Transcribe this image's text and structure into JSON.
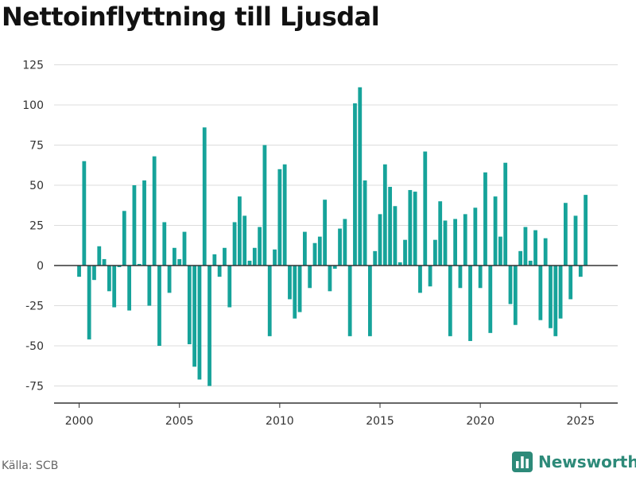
{
  "chart_data": {
    "type": "bar",
    "title": "Nettoinflyttning till Ljusdal",
    "xlabel": "",
    "ylabel": "",
    "ylim": [
      -85,
      135
    ],
    "yticks": [
      125,
      100,
      75,
      50,
      25,
      0,
      -25,
      -50,
      -75
    ],
    "xticks": [
      2000,
      2005,
      2010,
      2015,
      2020,
      2025
    ],
    "xlim": [
      1998.75,
      2026.85
    ],
    "bar_color": "#16a39a",
    "grid": true,
    "series": [
      {
        "values": [
          {
            "x": 2000.0,
            "y": -7
          },
          {
            "x": 2000.25,
            "y": 65
          },
          {
            "x": 2000.5,
            "y": -46
          },
          {
            "x": 2000.75,
            "y": -9
          },
          {
            "x": 2001.0,
            "y": 12
          },
          {
            "x": 2001.25,
            "y": 4
          },
          {
            "x": 2001.5,
            "y": -16
          },
          {
            "x": 2001.75,
            "y": -26
          },
          {
            "x": 2002.0,
            "y": -1
          },
          {
            "x": 2002.25,
            "y": 34
          },
          {
            "x": 2002.5,
            "y": -28
          },
          {
            "x": 2002.75,
            "y": 50
          },
          {
            "x": 2003.0,
            "y": 1
          },
          {
            "x": 2003.25,
            "y": 53
          },
          {
            "x": 2003.5,
            "y": -25
          },
          {
            "x": 2003.75,
            "y": 68
          },
          {
            "x": 2004.0,
            "y": -50
          },
          {
            "x": 2004.25,
            "y": 27
          },
          {
            "x": 2004.5,
            "y": -17
          },
          {
            "x": 2004.75,
            "y": 11
          },
          {
            "x": 2005.0,
            "y": 4
          },
          {
            "x": 2005.25,
            "y": 21
          },
          {
            "x": 2005.5,
            "y": -49
          },
          {
            "x": 2005.75,
            "y": -63
          },
          {
            "x": 2006.0,
            "y": -71
          },
          {
            "x": 2006.25,
            "y": 86
          },
          {
            "x": 2006.5,
            "y": -75
          },
          {
            "x": 2006.75,
            "y": 7
          },
          {
            "x": 2007.0,
            "y": -7
          },
          {
            "x": 2007.25,
            "y": 11
          },
          {
            "x": 2007.5,
            "y": -26
          },
          {
            "x": 2007.75,
            "y": 27
          },
          {
            "x": 2008.0,
            "y": 43
          },
          {
            "x": 2008.25,
            "y": 31
          },
          {
            "x": 2008.5,
            "y": 3
          },
          {
            "x": 2008.75,
            "y": 11
          },
          {
            "x": 2009.0,
            "y": 24
          },
          {
            "x": 2009.25,
            "y": 75
          },
          {
            "x": 2009.5,
            "y": -44
          },
          {
            "x": 2009.75,
            "y": 10
          },
          {
            "x": 2010.0,
            "y": 60
          },
          {
            "x": 2010.25,
            "y": 63
          },
          {
            "x": 2010.5,
            "y": -21
          },
          {
            "x": 2010.75,
            "y": -33
          },
          {
            "x": 2011.0,
            "y": -29
          },
          {
            "x": 2011.25,
            "y": 21
          },
          {
            "x": 2011.5,
            "y": -14
          },
          {
            "x": 2011.75,
            "y": 14
          },
          {
            "x": 2012.0,
            "y": 18
          },
          {
            "x": 2012.25,
            "y": 41
          },
          {
            "x": 2012.5,
            "y": -16
          },
          {
            "x": 2012.75,
            "y": -2
          },
          {
            "x": 2013.0,
            "y": 23
          },
          {
            "x": 2013.25,
            "y": 29
          },
          {
            "x": 2013.5,
            "y": -44
          },
          {
            "x": 2013.75,
            "y": 101
          },
          {
            "x": 2014.0,
            "y": 111
          },
          {
            "x": 2014.25,
            "y": 53
          },
          {
            "x": 2014.5,
            "y": -44
          },
          {
            "x": 2014.75,
            "y": 9
          },
          {
            "x": 2015.0,
            "y": 32
          },
          {
            "x": 2015.25,
            "y": 63
          },
          {
            "x": 2015.5,
            "y": 49
          },
          {
            "x": 2015.75,
            "y": 37
          },
          {
            "x": 2016.0,
            "y": 2
          },
          {
            "x": 2016.25,
            "y": 16
          },
          {
            "x": 2016.5,
            "y": 47
          },
          {
            "x": 2016.75,
            "y": 46
          },
          {
            "x": 2017.0,
            "y": -17
          },
          {
            "x": 2017.25,
            "y": 71
          },
          {
            "x": 2017.5,
            "y": -13
          },
          {
            "x": 2017.75,
            "y": 16
          },
          {
            "x": 2018.0,
            "y": 40
          },
          {
            "x": 2018.25,
            "y": 28
          },
          {
            "x": 2018.5,
            "y": -44
          },
          {
            "x": 2018.75,
            "y": 29
          },
          {
            "x": 2019.0,
            "y": -14
          },
          {
            "x": 2019.25,
            "y": 32
          },
          {
            "x": 2019.5,
            "y": -47
          },
          {
            "x": 2019.75,
            "y": 36
          },
          {
            "x": 2020.0,
            "y": -14
          },
          {
            "x": 2020.25,
            "y": 58
          },
          {
            "x": 2020.5,
            "y": -42
          },
          {
            "x": 2020.75,
            "y": 43
          },
          {
            "x": 2021.0,
            "y": 18
          },
          {
            "x": 2021.25,
            "y": 64
          },
          {
            "x": 2021.5,
            "y": -24
          },
          {
            "x": 2021.75,
            "y": -37
          },
          {
            "x": 2022.0,
            "y": 9
          },
          {
            "x": 2022.25,
            "y": 24
          },
          {
            "x": 2022.5,
            "y": 3
          },
          {
            "x": 2022.75,
            "y": 22
          },
          {
            "x": 2023.0,
            "y": -34
          },
          {
            "x": 2023.25,
            "y": 17
          },
          {
            "x": 2023.5,
            "y": -39
          },
          {
            "x": 2023.75,
            "y": -44
          },
          {
            "x": 2024.0,
            "y": -33
          },
          {
            "x": 2024.25,
            "y": 39
          },
          {
            "x": 2024.5,
            "y": -21
          },
          {
            "x": 2024.75,
            "y": 31
          },
          {
            "x": 2025.0,
            "y": -7
          },
          {
            "x": 2025.25,
            "y": 44
          }
        ]
      }
    ]
  },
  "footer": {
    "source": "Källa: SCB"
  },
  "brand": {
    "name": "Newsworthy",
    "color": "#2d8a79",
    "icon": "bar-chart-logo-icon"
  }
}
